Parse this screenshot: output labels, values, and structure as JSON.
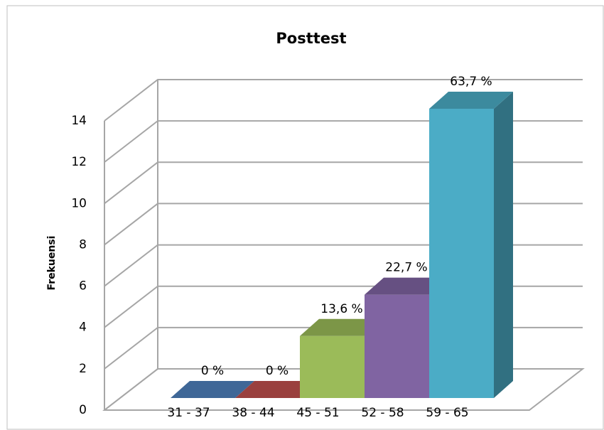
{
  "chart_data": {
    "type": "bar3d",
    "title": "Posttest",
    "y_label": "Frekuensi",
    "categories": [
      "31 - 37",
      "38 - 44",
      "45 - 51",
      "52 - 58",
      "59 - 65"
    ],
    "values": [
      0,
      0,
      3,
      5,
      14
    ],
    "annotations": [
      "0 %",
      "0 %",
      "13,6 %",
      "22,7 %",
      "63,7 %"
    ],
    "colors": [
      "#4f81bd",
      "#c0504d",
      "#9bbb59",
      "#8064a2",
      "#4bacc6"
    ],
    "ylim": [
      0,
      14
    ],
    "yticks": [
      0,
      2,
      4,
      6,
      8,
      10,
      12,
      14
    ],
    "grid": true
  }
}
